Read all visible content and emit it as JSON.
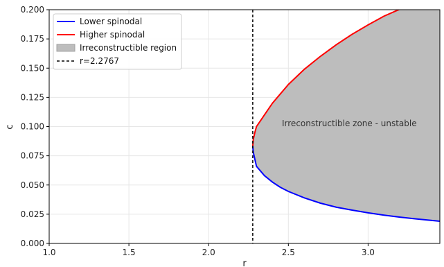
{
  "chart_data": {
    "type": "line",
    "xlabel": "r",
    "ylabel": "c",
    "xlim": [
      1.0,
      3.45
    ],
    "ylim": [
      0.0,
      0.2
    ],
    "xticks": [
      "1.0",
      "1.5",
      "2.0",
      "2.5",
      "3.0"
    ],
    "yticks": [
      "0.000",
      "0.025",
      "0.050",
      "0.075",
      "0.100",
      "0.125",
      "0.150",
      "0.175",
      "0.200"
    ],
    "grid": true,
    "legend_position": "top-left",
    "series": [
      {
        "name": "Lower spinodal",
        "color": "#0000ff",
        "x": [
          2.2767,
          2.28,
          2.3,
          2.35,
          2.4,
          2.45,
          2.5,
          2.6,
          2.7,
          2.8,
          2.9,
          3.0,
          3.1,
          3.2,
          3.3,
          3.45
        ],
        "y": [
          0.0833,
          0.078,
          0.066,
          0.058,
          0.0525,
          0.048,
          0.0445,
          0.039,
          0.0345,
          0.031,
          0.0285,
          0.0262,
          0.0242,
          0.0225,
          0.021,
          0.019
        ]
      },
      {
        "name": "Higher spinodal",
        "color": "#ff0000",
        "x": [
          2.2767,
          2.28,
          2.29,
          2.3,
          2.35,
          2.4,
          2.45,
          2.5,
          2.6,
          2.7,
          2.8,
          2.9,
          3.0,
          3.1,
          3.2,
          3.27
        ],
        "y": [
          0.0833,
          0.089,
          0.095,
          0.1,
          0.11,
          0.12,
          0.128,
          0.136,
          0.149,
          0.16,
          0.17,
          0.179,
          0.187,
          0.1945,
          0.2005,
          0.204
        ]
      }
    ],
    "regions": [
      {
        "name": "Irreconstructible region",
        "color": "#bdbdbd",
        "between": [
          "Lower spinodal",
          "Higher spinodal"
        ]
      }
    ],
    "vlines": [
      {
        "name": "r=2.2767",
        "x": 2.2767,
        "color": "#000000",
        "style": "dashed"
      }
    ],
    "annotations": [
      {
        "text": "Irreconstructible zone - unstable",
        "x": 2.46,
        "y": 0.1025
      }
    ]
  }
}
